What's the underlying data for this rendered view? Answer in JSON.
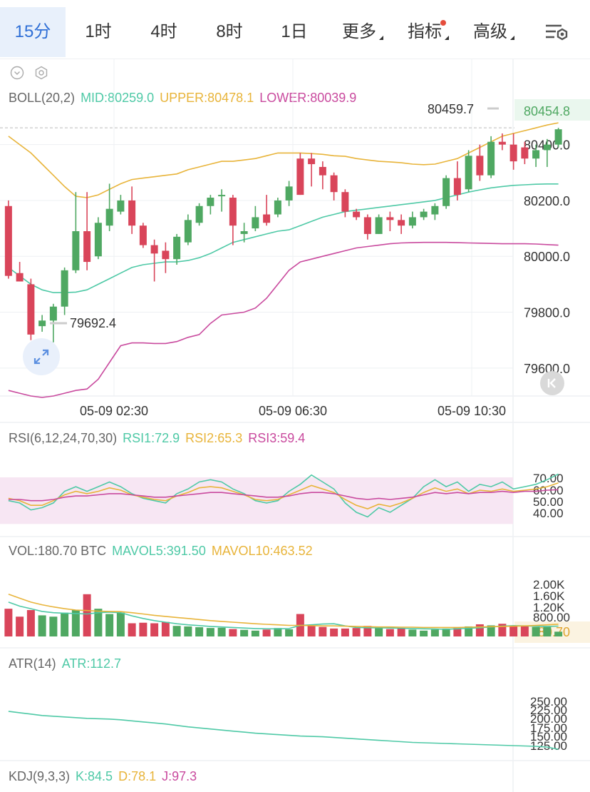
{
  "tabs": [
    {
      "label": "15分",
      "active": true
    },
    {
      "label": "1时"
    },
    {
      "label": "4时"
    },
    {
      "label": "8时"
    },
    {
      "label": "1日"
    },
    {
      "label": "更多",
      "dropdown": true
    },
    {
      "label": "指标",
      "dropdown": true,
      "badge": true
    },
    {
      "label": "高级",
      "dropdown": true
    }
  ],
  "colors": {
    "up": "#4fa862",
    "down": "#d9455a",
    "mid": "#4ec9a6",
    "upper": "#e8b43a",
    "lower": "#c94a9e",
    "grid": "#eef0f3",
    "text": "#333333",
    "muted": "#888888"
  },
  "boll": {
    "name": "BOLL(20,2)",
    "mid": "MID:80259.0",
    "upper": "UPPER:80478.1",
    "lower": "LOWER:80039.9"
  },
  "rsi": {
    "name": "RSI(6,12,24,70,30)",
    "rsi1": "RSI1:72.9",
    "rsi2": "RSI2:65.3",
    "rsi3": "RSI3:59.4"
  },
  "vol": {
    "name": "VOL:180.70 BTC",
    "mavol5": "MAVOL5:391.50",
    "mavol10": "MAVOL10:463.52"
  },
  "atr": {
    "name": "ATR(14)",
    "atr": "ATR:112.7"
  },
  "kdj": {
    "name": "KDJ(9,3,3)",
    "k": "K:84.5",
    "d": "D:78.1",
    "j": "J:97.3"
  },
  "price_labels": {
    "last": "80454.8",
    "high": "80459.7",
    "low": "79692.4",
    "last_vol": "180.70"
  },
  "icons": [
    "chevron-down-circle-icon",
    "settings-hexagon-icon",
    "expand-arrows-icon",
    "collapse-left-icon",
    "list-settings-icon"
  ],
  "chart_data": [
    {
      "type": "candlestick",
      "title": "BOLL(20,2)",
      "ylim": [
        79500,
        80560
      ],
      "y_ticks": [
        "80400.0",
        "80200.0",
        "80000.0",
        "79800.0",
        "79600.0"
      ],
      "x_ticks": [
        "05-09 02:30",
        "05-09 06:30",
        "05-09 10:30"
      ],
      "candles": [
        {
          "o": 80180,
          "h": 80200,
          "l": 79920,
          "c": 79930
        },
        {
          "o": 79940,
          "h": 79980,
          "l": 79910,
          "c": 79910
        },
        {
          "o": 79900,
          "h": 79920,
          "l": 79700,
          "c": 79720
        },
        {
          "o": 79750,
          "h": 79790,
          "l": 79730,
          "c": 79770
        },
        {
          "o": 79770,
          "h": 79830,
          "l": 79692,
          "c": 79820
        },
        {
          "o": 79820,
          "h": 79960,
          "l": 79790,
          "c": 79950
        },
        {
          "o": 79950,
          "h": 80230,
          "l": 79940,
          "c": 80090
        },
        {
          "o": 80090,
          "h": 80230,
          "l": 79950,
          "c": 79980
        },
        {
          "o": 80000,
          "h": 80140,
          "l": 79990,
          "c": 80120
        },
        {
          "o": 80110,
          "h": 80260,
          "l": 80090,
          "c": 80170
        },
        {
          "o": 80160,
          "h": 80220,
          "l": 80150,
          "c": 80200
        },
        {
          "o": 80200,
          "h": 80250,
          "l": 80080,
          "c": 80110
        },
        {
          "o": 80110,
          "h": 80120,
          "l": 80030,
          "c": 80040
        },
        {
          "o": 80040,
          "h": 80060,
          "l": 79910,
          "c": 80010
        },
        {
          "o": 80020,
          "h": 80050,
          "l": 79940,
          "c": 79990
        },
        {
          "o": 79990,
          "h": 80080,
          "l": 79970,
          "c": 80070
        },
        {
          "o": 80050,
          "h": 80150,
          "l": 80040,
          "c": 80130
        },
        {
          "o": 80120,
          "h": 80190,
          "l": 80110,
          "c": 80180
        },
        {
          "o": 80180,
          "h": 80220,
          "l": 80150,
          "c": 80210
        },
        {
          "o": 80220,
          "h": 80240,
          "l": 80160,
          "c": 80220
        },
        {
          "o": 80210,
          "h": 80220,
          "l": 80040,
          "c": 80110
        },
        {
          "o": 80080,
          "h": 80120,
          "l": 80050,
          "c": 80090
        },
        {
          "o": 80100,
          "h": 80180,
          "l": 80090,
          "c": 80140
        },
        {
          "o": 80150,
          "h": 80220,
          "l": 80110,
          "c": 80120
        },
        {
          "o": 80150,
          "h": 80210,
          "l": 80140,
          "c": 80200
        },
        {
          "o": 80200,
          "h": 80270,
          "l": 80180,
          "c": 80250
        },
        {
          "o": 80350,
          "h": 80370,
          "l": 80220,
          "c": 80220
        },
        {
          "o": 80350,
          "h": 80370,
          "l": 80250,
          "c": 80330
        },
        {
          "o": 80320,
          "h": 80340,
          "l": 80240,
          "c": 80290
        },
        {
          "o": 80290,
          "h": 80300,
          "l": 80200,
          "c": 80230
        },
        {
          "o": 80230,
          "h": 80240,
          "l": 80140,
          "c": 80160
        },
        {
          "o": 80160,
          "h": 80170,
          "l": 80130,
          "c": 80140
        },
        {
          "o": 80140,
          "h": 80150,
          "l": 80060,
          "c": 80080
        },
        {
          "o": 80080,
          "h": 80150,
          "l": 80080,
          "c": 80140
        },
        {
          "o": 80140,
          "h": 80160,
          "l": 80090,
          "c": 80130
        },
        {
          "o": 80130,
          "h": 80150,
          "l": 80080,
          "c": 80110
        },
        {
          "o": 80110,
          "h": 80160,
          "l": 80100,
          "c": 80140
        },
        {
          "o": 80140,
          "h": 80170,
          "l": 80130,
          "c": 80160
        },
        {
          "o": 80150,
          "h": 80190,
          "l": 80130,
          "c": 80180
        },
        {
          "o": 80180,
          "h": 80290,
          "l": 80170,
          "c": 80280
        },
        {
          "o": 80280,
          "h": 80340,
          "l": 80200,
          "c": 80220
        },
        {
          "o": 80240,
          "h": 80380,
          "l": 80230,
          "c": 80360
        },
        {
          "o": 80360,
          "h": 80400,
          "l": 80270,
          "c": 80290
        },
        {
          "o": 80290,
          "h": 80430,
          "l": 80280,
          "c": 80410
        },
        {
          "o": 80410,
          "h": 80440,
          "l": 80380,
          "c": 80400
        },
        {
          "o": 80400,
          "h": 80440,
          "l": 80310,
          "c": 80340
        },
        {
          "o": 80390,
          "h": 80410,
          "l": 80330,
          "c": 80350
        },
        {
          "o": 80350,
          "h": 80400,
          "l": 80320,
          "c": 80380
        },
        {
          "o": 80380,
          "h": 80420,
          "l": 80320,
          "c": 80400
        },
        {
          "o": 80400,
          "h": 80460,
          "l": 80390,
          "c": 80454.8
        }
      ],
      "series": [
        {
          "name": "MID",
          "values": [
            79960,
            79930,
            79900,
            79880,
            79870,
            79870,
            79872,
            79880,
            79900,
            79920,
            79940,
            79960,
            79970,
            79975,
            79980,
            79980,
            79985,
            79995,
            80010,
            80030,
            80050,
            80060,
            80070,
            80080,
            80090,
            80095,
            80110,
            80125,
            80140,
            80150,
            80160,
            80165,
            80170,
            80175,
            80180,
            80185,
            80190,
            80195,
            80200,
            80210,
            80220,
            80230,
            80238,
            80245,
            80250,
            80254,
            80256,
            80258,
            80259,
            80259
          ]
        },
        {
          "name": "UPPER",
          "values": [
            80430,
            80400,
            80370,
            80330,
            80290,
            80250,
            80215,
            80210,
            80220,
            80240,
            80260,
            80275,
            80280,
            80285,
            80290,
            80295,
            80310,
            80320,
            80330,
            80340,
            80340,
            80345,
            80350,
            80360,
            80370,
            80370,
            80370,
            80368,
            80365,
            80360,
            80358,
            80350,
            80345,
            80340,
            80338,
            80335,
            80330,
            80328,
            80330,
            80340,
            80350,
            80370,
            80390,
            80410,
            80430,
            80440,
            80450,
            80460,
            80470,
            80478
          ]
        },
        {
          "name": "LOWER",
          "values": [
            79520,
            79510,
            79500,
            79495,
            79500,
            79510,
            79520,
            79525,
            79560,
            79620,
            79680,
            79690,
            79690,
            79688,
            79688,
            79695,
            79710,
            79720,
            79760,
            79790,
            79795,
            79800,
            79815,
            79850,
            79900,
            79950,
            79980,
            79990,
            80000,
            80010,
            80020,
            80030,
            80035,
            80040,
            80045,
            80048,
            80049,
            80050,
            80050,
            80050,
            80049,
            80048,
            80047,
            80046,
            80045,
            80045,
            80045,
            80044,
            80042,
            80040
          ]
        }
      ]
    },
    {
      "type": "line",
      "title": "RSI(6,12,24,70,30)",
      "ylim": [
        30,
        75
      ],
      "y_ticks": [
        "70.00",
        "60.00",
        "50.00",
        "40.00"
      ],
      "series": [
        {
          "name": "RSI1",
          "values": [
            50,
            48,
            42,
            44,
            48,
            58,
            62,
            58,
            62,
            66,
            62,
            56,
            52,
            50,
            48,
            56,
            60,
            66,
            68,
            66,
            60,
            56,
            50,
            48,
            50,
            58,
            64,
            72,
            66,
            60,
            48,
            40,
            36,
            44,
            40,
            46,
            52,
            62,
            68,
            62,
            66,
            58,
            64,
            62,
            66,
            60,
            62,
            64,
            68,
            72.9
          ]
        },
        {
          "name": "RSI2",
          "values": [
            52,
            50,
            46,
            46,
            50,
            55,
            58,
            56,
            58,
            61,
            59,
            55,
            53,
            51,
            50,
            54,
            57,
            61,
            62,
            61,
            58,
            55,
            51,
            50,
            51,
            55,
            59,
            63,
            60,
            57,
            51,
            46,
            43,
            47,
            45,
            48,
            52,
            57,
            61,
            58,
            60,
            56,
            59,
            58,
            60,
            58,
            59,
            60,
            62,
            65.3
          ]
        },
        {
          "name": "RSI3",
          "values": [
            51,
            51,
            50,
            50,
            51,
            53,
            54,
            54,
            55,
            56,
            56,
            55,
            54,
            53,
            53,
            54,
            55,
            56,
            57,
            57,
            56,
            55,
            54,
            53,
            53,
            54,
            56,
            57,
            57,
            56,
            54,
            52,
            51,
            52,
            51,
            52,
            53,
            55,
            57,
            56,
            57,
            56,
            57,
            57,
            58,
            57,
            58,
            58,
            59,
            59.4
          ]
        }
      ]
    },
    {
      "type": "bar",
      "title": "VOL",
      "ylim": [
        0,
        2200
      ],
      "y_ticks": [
        "2.00K",
        "1.60K",
        "1.20K",
        "800.00"
      ],
      "values": [
        1050,
        750,
        1000,
        800,
        750,
        900,
        1000,
        1600,
        1050,
        850,
        900,
        500,
        520,
        500,
        550,
        400,
        380,
        350,
        320,
        330,
        280,
        250,
        220,
        260,
        320,
        270,
        850,
        400,
        360,
        300,
        300,
        320,
        400,
        320,
        280,
        320,
        260,
        220,
        260,
        300,
        320,
        380,
        460,
        420,
        480,
        400,
        380,
        360,
        360,
        180.7
      ],
      "series": [
        {
          "name": "MAVOL5",
          "values": [
            1300,
            1150,
            1050,
            950,
            900,
            880,
            870,
            850,
            900,
            920,
            900,
            780,
            680,
            600,
            540,
            480,
            440,
            410,
            380,
            360,
            340,
            320,
            300,
            290,
            290,
            300,
            420,
            440,
            470,
            480,
            400,
            340,
            330,
            330,
            320,
            310,
            300,
            290,
            280,
            270,
            290,
            310,
            330,
            360,
            390,
            410,
            400,
            390,
            380,
            391.5
          ]
        },
        {
          "name": "MAVOL10",
          "values": [
            1600,
            1450,
            1300,
            1200,
            1120,
            1050,
            1000,
            980,
            960,
            950,
            940,
            900,
            850,
            800,
            760,
            720,
            680,
            640,
            600,
            570,
            540,
            510,
            480,
            460,
            440,
            420,
            420,
            410,
            400,
            400,
            390,
            380,
            370,
            360,
            360,
            350,
            350,
            340,
            340,
            340,
            340,
            350,
            360,
            370,
            380,
            390,
            400,
            420,
            440,
            463.52
          ]
        }
      ]
    },
    {
      "type": "line",
      "title": "ATR(14)",
      "ylim": [
        100,
        275
      ],
      "y_ticks": [
        "250.00",
        "225.00",
        "200.00",
        "175.00",
        "150.00",
        "125.00"
      ],
      "series": [
        {
          "name": "ATR",
          "values": [
            220,
            216,
            212,
            208,
            206,
            204,
            202,
            200,
            199,
            198,
            196,
            193,
            190,
            187,
            184,
            180,
            176,
            173,
            170,
            167,
            164,
            161,
            158,
            156,
            154,
            152,
            150,
            149,
            148,
            146,
            144,
            142,
            140,
            138,
            136,
            134,
            132,
            131,
            130,
            129,
            128,
            127,
            126,
            125,
            124,
            123,
            122,
            121,
            119,
            112.7
          ]
        }
      ]
    }
  ]
}
